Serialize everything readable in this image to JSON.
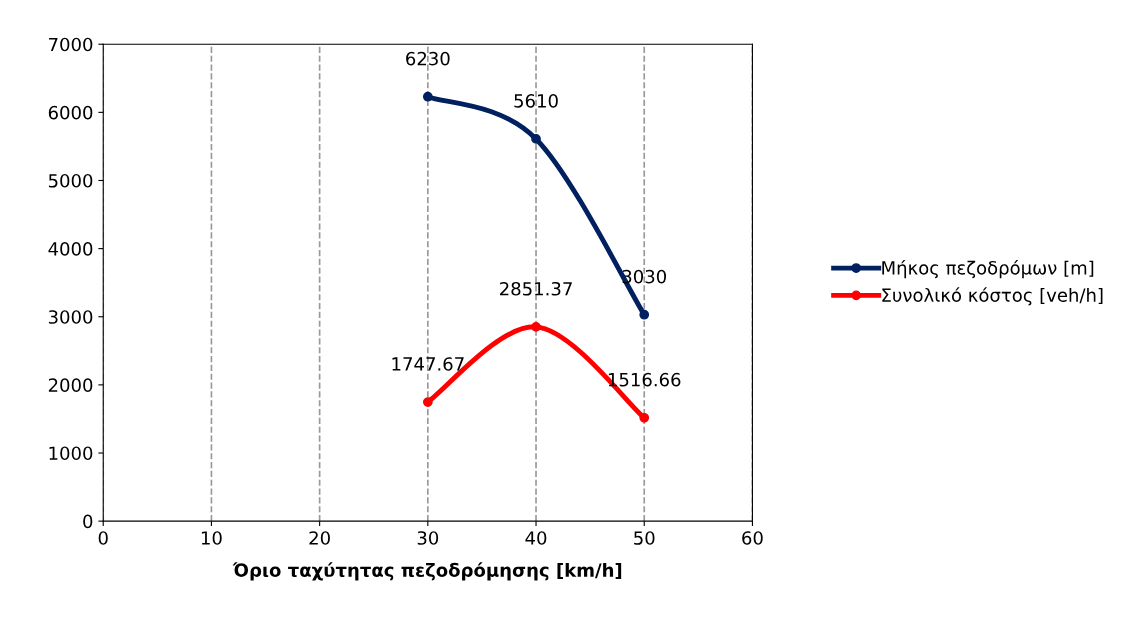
{
  "chart_data": {
    "type": "line",
    "xlabel": "Όριο ταχύτητας πεζοδρόμησης [km/h]",
    "x": [
      30,
      40,
      50
    ],
    "series": [
      {
        "name": "Μήκος πεζοδρόμων [m]",
        "color": "#002060",
        "values": [
          6230,
          5610,
          3030
        ]
      },
      {
        "name": "Συνολικό κόστος [veh/h]",
        "color": "#ff0000",
        "values": [
          1747.67,
          2851.37,
          1516.66
        ]
      }
    ],
    "xlim": [
      0,
      60
    ],
    "xticks": [
      0,
      10,
      20,
      30,
      40,
      50,
      60
    ],
    "ylim": [
      0,
      7000
    ],
    "yticks": [
      0,
      1000,
      2000,
      3000,
      4000,
      5000,
      6000,
      7000
    ],
    "grid": "x",
    "legend": "right",
    "marker": "circle",
    "line_style": "solid",
    "data_labels": true
  }
}
